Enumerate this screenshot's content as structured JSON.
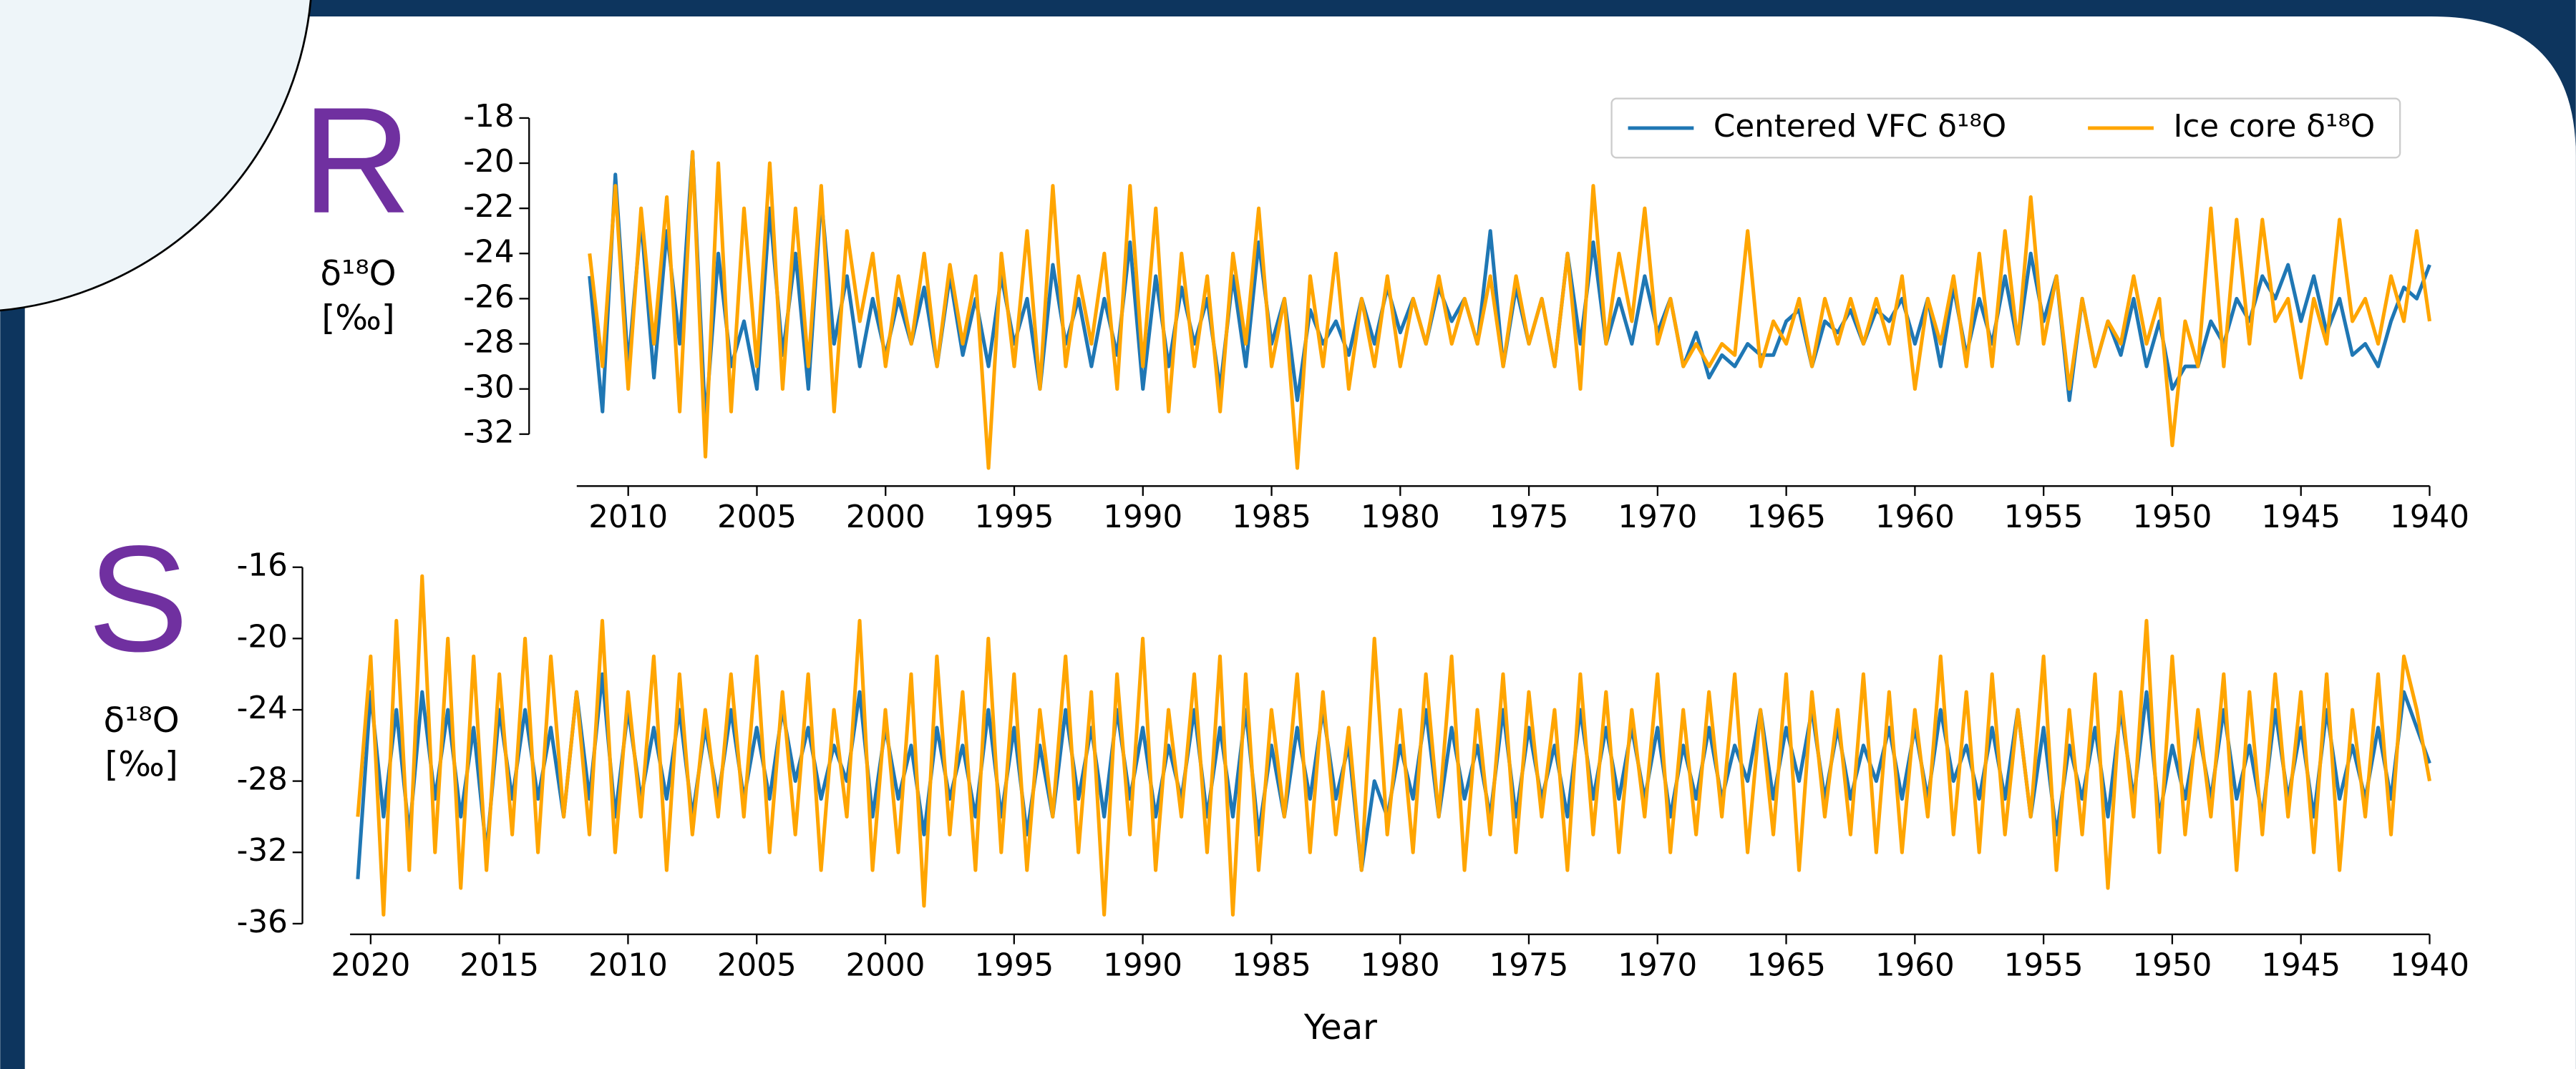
{
  "chart_data": [
    {
      "type": "line",
      "panel_label": "R",
      "ylabel": [
        "δ¹⁸O",
        "[‰]"
      ],
      "legend": "upper right",
      "xlim": [
        2012,
        1940
      ],
      "ylim": [
        -34.3,
        -17.5
      ],
      "xticks": [
        2010,
        2005,
        2000,
        1995,
        1990,
        1985,
        1980,
        1975,
        1970,
        1965,
        1960,
        1955,
        1950,
        1945,
        1940
      ],
      "yticks": [
        -18,
        -20,
        -22,
        -24,
        -26,
        -28,
        -30,
        -32
      ],
      "x": [
        2011.5,
        2011,
        2010.5,
        2010,
        2009.5,
        2009,
        2008.5,
        2008,
        2007.5,
        2007,
        2006.5,
        2006,
        2005.5,
        2005,
        2004.5,
        2004,
        2003.5,
        2003,
        2002.5,
        2002,
        2001.5,
        2001,
        2000.5,
        2000,
        1999.5,
        1999,
        1998.5,
        1998,
        1997.5,
        1997,
        1996.5,
        1996,
        1995.5,
        1995,
        1994.5,
        1994,
        1993.5,
        1993,
        1992.5,
        1992,
        1991.5,
        1991,
        1990.5,
        1990,
        1989.5,
        1989,
        1988.5,
        1988,
        1987.5,
        1987,
        1986.5,
        1986,
        1985.5,
        1985,
        1984.5,
        1984,
        1983.5,
        1983,
        1982.5,
        1982,
        1981.5,
        1981,
        1980.5,
        1980,
        1979.5,
        1979,
        1978.5,
        1978,
        1977.5,
        1977,
        1976.5,
        1976,
        1975.5,
        1975,
        1974.5,
        1974,
        1973.5,
        1973,
        1972.5,
        1972,
        1971.5,
        1971,
        1970.5,
        1970,
        1969.5,
        1969,
        1968.5,
        1968,
        1967.5,
        1967,
        1966.5,
        1966,
        1965.5,
        1965,
        1964.5,
        1964,
        1963.5,
        1963,
        1962.5,
        1962,
        1961.5,
        1961,
        1960.5,
        1960,
        1959.5,
        1959,
        1958.5,
        1958,
        1957.5,
        1957,
        1956.5,
        1956,
        1955.5,
        1955,
        1954.5,
        1954,
        1953.5,
        1953,
        1952.5,
        1952,
        1951.5,
        1951,
        1950.5,
        1950,
        1949.5,
        1949,
        1948.5,
        1948,
        1947.5,
        1947,
        1946.5,
        1946,
        1945.5,
        1945,
        1944.5,
        1944,
        1943.5,
        1943,
        1942.5,
        1942,
        1941.5,
        1941,
        1940.5,
        1940
      ],
      "series": [
        {
          "name": "Centered VFC δ¹⁸O",
          "color": "#1f77b4",
          "values": [
            -25,
            -31,
            -20.5,
            -29,
            -22.5,
            -29.5,
            -23,
            -28,
            -19.5,
            -31.5,
            -24,
            -29,
            -27,
            -30,
            -22,
            -28.5,
            -24,
            -30,
            -21.5,
            -28,
            -25,
            -29,
            -26,
            -28.5,
            -26,
            -28,
            -25.5,
            -29,
            -25,
            -28.5,
            -26,
            -29,
            -25,
            -28,
            -26,
            -30,
            -24.5,
            -28,
            -26,
            -29,
            -26,
            -28.5,
            -23.5,
            -30,
            -25,
            -29,
            -25.5,
            -28,
            -26,
            -30,
            -25,
            -29,
            -23.5,
            -28,
            -26,
            -30.5,
            -26.5,
            -28,
            -27,
            -28.5,
            -26,
            -28,
            -25.5,
            -27.5,
            -26,
            -28,
            -25.5,
            -27,
            -26,
            -28,
            -23,
            -29,
            -25.5,
            -28,
            -26,
            -29,
            -24,
            -28,
            -23.5,
            -28,
            -26,
            -28,
            -25,
            -27.5,
            -26,
            -29,
            -27.5,
            -29.5,
            -28.5,
            -29,
            -28,
            -28.5,
            -28.5,
            -27,
            -26.5,
            -29,
            -27,
            -27.5,
            -26.5,
            -28,
            -26.5,
            -27,
            -26,
            -28,
            -26,
            -29,
            -25.5,
            -28.5,
            -26,
            -28,
            -25,
            -28,
            -24,
            -27,
            -25,
            -30.5,
            -26,
            -29,
            -27,
            -28.5,
            -26,
            -29,
            -27,
            -30,
            -29,
            -29,
            -27,
            -28,
            -26,
            -27,
            -25,
            -26,
            -24.5,
            -27,
            -25,
            -27.5,
            -26,
            -28.5,
            -28,
            -29,
            -27,
            -25.5,
            -26,
            -24.5
          ]
        },
        {
          "name": "Ice core δ¹⁸O",
          "color": "#ffa500",
          "values": [
            -24,
            -29,
            -21,
            -30,
            -22,
            -28,
            -21.5,
            -31,
            -19.5,
            -33,
            -20,
            -31,
            -22,
            -29,
            -20,
            -30,
            -22,
            -29,
            -21,
            -31,
            -23,
            -27,
            -24,
            -29,
            -25,
            -28,
            -24,
            -29,
            -24.5,
            -28,
            -25,
            -33.5,
            -24,
            -29,
            -23,
            -30,
            -21,
            -29,
            -25,
            -28,
            -24,
            -30,
            -21,
            -29,
            -22,
            -31,
            -24,
            -29,
            -25,
            -31,
            -24,
            -28,
            -22,
            -29,
            -26,
            -33.5,
            -25,
            -29,
            -24,
            -30,
            -26,
            -29,
            -25,
            -29,
            -26,
            -28,
            -25,
            -28,
            -26,
            -28,
            -25,
            -29,
            -25,
            -28,
            -26,
            -29,
            -24,
            -30,
            -21,
            -28,
            -24,
            -27,
            -22,
            -28,
            -26,
            -29,
            -28,
            -29,
            -28,
            -28.5,
            -23,
            -29,
            -27,
            -28,
            -26,
            -29,
            -26,
            -28,
            -26,
            -28,
            -26,
            -28,
            -25,
            -30,
            -26,
            -28,
            -25,
            -29,
            -24,
            -29,
            -23,
            -28,
            -21.5,
            -28,
            -25,
            -30,
            -26,
            -29,
            -27,
            -28,
            -25,
            -28,
            -26,
            -32.5,
            -27,
            -29,
            -22,
            -29,
            -22.5,
            -28,
            -22.5,
            -27,
            -26,
            -29.5,
            -26,
            -28,
            -22.5,
            -27,
            -26,
            -28,
            -25,
            -27,
            -23,
            -27
          ]
        }
      ]
    },
    {
      "type": "line",
      "panel_label": "S",
      "ylabel": [
        "δ¹⁸O",
        "[‰]"
      ],
      "xlabel": "Year",
      "xlim": [
        2020.8,
        1940
      ],
      "ylim": [
        -36.6,
        -15.5
      ],
      "xticks": [
        2020,
        2015,
        2010,
        2005,
        2000,
        1995,
        1990,
        1985,
        1980,
        1975,
        1970,
        1965,
        1960,
        1955,
        1950,
        1945,
        1940
      ],
      "yticks": [
        -16,
        -20,
        -24,
        -28,
        -32,
        -36
      ],
      "x": [
        2020.5,
        2020,
        2019.5,
        2019,
        2018.5,
        2018,
        2017.5,
        2017,
        2016.5,
        2016,
        2015.5,
        2015,
        2014.5,
        2014,
        2013.5,
        2013,
        2012.5,
        2012,
        2011.5,
        2011,
        2010.5,
        2010,
        2009.5,
        2009,
        2008.5,
        2008,
        2007.5,
        2007,
        2006.5,
        2006,
        2005.5,
        2005,
        2004.5,
        2004,
        2003.5,
        2003,
        2002.5,
        2002,
        2001.5,
        2001,
        2000.5,
        2000,
        1999.5,
        1999,
        1998.5,
        1998,
        1997.5,
        1997,
        1996.5,
        1996,
        1995.5,
        1995,
        1994.5,
        1994,
        1993.5,
        1993,
        1992.5,
        1992,
        1991.5,
        1991,
        1990.5,
        1990,
        1989.5,
        1989,
        1988.5,
        1988,
        1987.5,
        1987,
        1986.5,
        1986,
        1985.5,
        1985,
        1984.5,
        1984,
        1983.5,
        1983,
        1982.5,
        1982,
        1981.5,
        1981,
        1980.5,
        1980,
        1979.5,
        1979,
        1978.5,
        1978,
        1977.5,
        1977,
        1976.5,
        1976,
        1975.5,
        1975,
        1974.5,
        1974,
        1973.5,
        1973,
        1972.5,
        1972,
        1971.5,
        1971,
        1970.5,
        1970,
        1969.5,
        1969,
        1968.5,
        1968,
        1967.5,
        1967,
        1966.5,
        1966,
        1965.5,
        1965,
        1964.5,
        1964,
        1963.5,
        1963,
        1962.5,
        1962,
        1961.5,
        1961,
        1960.5,
        1960,
        1959.5,
        1959,
        1958.5,
        1958,
        1957.5,
        1957,
        1956.5,
        1956,
        1955.5,
        1955,
        1954.5,
        1954,
        1953.5,
        1953,
        1952.5,
        1952,
        1951.5,
        1951,
        1950.5,
        1950,
        1949.5,
        1949,
        1948.5,
        1948,
        1947.5,
        1947,
        1946.5,
        1946,
        1945.5,
        1945,
        1944.5,
        1944,
        1943.5,
        1943,
        1942.5,
        1942,
        1941.5,
        1941,
        1940.5,
        1940
      ],
      "series": [
        {
          "color": "#1f77b4",
          "values": [
            -33.5,
            -23,
            -30,
            -24,
            -31,
            -23,
            -29,
            -24,
            -30,
            -25,
            -32,
            -24,
            -29,
            -24,
            -29,
            -25,
            -30,
            -23,
            -29,
            -22,
            -30,
            -24,
            -29,
            -25,
            -29,
            -24,
            -30,
            -25,
            -29,
            -24,
            -29,
            -25,
            -29,
            -24,
            -28,
            -25,
            -29,
            -26,
            -28,
            -23,
            -30,
            -25,
            -29,
            -26,
            -31,
            -25,
            -29,
            -26,
            -30,
            -24,
            -30,
            -25,
            -31,
            -26,
            -30,
            -24,
            -29,
            -25,
            -30,
            -24,
            -29,
            -25,
            -30,
            -26,
            -29,
            -24,
            -30,
            -25,
            -30,
            -24,
            -31,
            -26,
            -30,
            -25,
            -29,
            -24,
            -29,
            -26,
            -33,
            -28,
            -30,
            -26,
            -29,
            -24,
            -30,
            -25,
            -29,
            -26,
            -30,
            -24,
            -30,
            -25,
            -29,
            -26,
            -30,
            -24,
            -29,
            -25,
            -29,
            -25,
            -29,
            -25,
            -30,
            -26,
            -29,
            -25,
            -29,
            -26,
            -28,
            -24,
            -29,
            -25,
            -28,
            -24,
            -29,
            -25,
            -29,
            -26,
            -28,
            -25,
            -29,
            -25,
            -29,
            -24,
            -28,
            -26,
            -29,
            -25,
            -29,
            -24,
            -30,
            -25,
            -31,
            -26,
            -29,
            -25,
            -30,
            -24,
            -29,
            -23,
            -30,
            -26,
            -29,
            -25,
            -29,
            -24,
            -29,
            -26,
            -30,
            -24,
            -29,
            -25,
            -30,
            -24,
            -29,
            -26,
            -29,
            -25,
            -29,
            -23,
            -25,
            -27
          ]
        },
        {
          "color": "#ffa500",
          "values": [
            -30,
            -21,
            -35.5,
            -19,
            -33,
            -16.5,
            -32,
            -20,
            -34,
            -21,
            -33,
            -22,
            -31,
            -20,
            -32,
            -21,
            -30,
            -23,
            -31,
            -19,
            -32,
            -23,
            -30,
            -21,
            -33,
            -22,
            -31,
            -24,
            -30,
            -22,
            -30,
            -21,
            -32,
            -23,
            -31,
            -22,
            -33,
            -24,
            -30,
            -19,
            -33,
            -24,
            -32,
            -22,
            -35,
            -21,
            -31,
            -23,
            -33,
            -20,
            -32,
            -22,
            -33,
            -24,
            -30,
            -21,
            -32,
            -23,
            -35.5,
            -22,
            -31,
            -20,
            -33,
            -24,
            -30,
            -22,
            -32,
            -21,
            -35.5,
            -22,
            -33,
            -24,
            -30,
            -22,
            -32,
            -23,
            -31,
            -25,
            -33,
            -20,
            -31,
            -24,
            -32,
            -22,
            -30,
            -21,
            -33,
            -24,
            -31,
            -22,
            -32,
            -23,
            -30,
            -24,
            -33,
            -22,
            -31,
            -23,
            -32,
            -24,
            -30,
            -22,
            -32,
            -24,
            -31,
            -23,
            -30,
            -22,
            -32,
            -24,
            -31,
            -22,
            -33,
            -23,
            -30,
            -24,
            -31,
            -22,
            -32,
            -23,
            -32,
            -24,
            -30,
            -21,
            -31,
            -23,
            -32,
            -22,
            -31,
            -24,
            -30,
            -21,
            -33,
            -24,
            -31,
            -22,
            -34,
            -23,
            -30,
            -19,
            -32,
            -21,
            -31,
            -24,
            -30,
            -22,
            -33,
            -23,
            -31,
            -22,
            -30,
            -23,
            -32,
            -22,
            -33,
            -24,
            -30,
            -22,
            -31,
            -21,
            -24,
            -28
          ]
        }
      ]
    }
  ]
}
